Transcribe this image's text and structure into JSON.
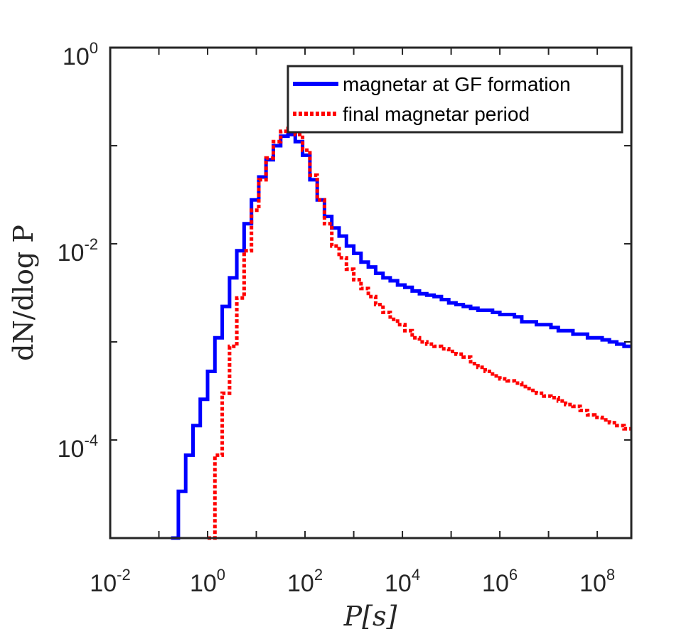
{
  "chart_data": {
    "type": "line",
    "title": "",
    "xlabel": "P[s]",
    "ylabel": "dN/dlog P",
    "xscale": "log",
    "yscale": "log",
    "xlim": [
      0.01,
      500000000
    ],
    "ylim": [
      1e-05,
      1
    ],
    "xticks": [
      {
        "base": "10",
        "exp": "-2",
        "value": 0.01
      },
      {
        "base": "10",
        "exp": "0",
        "value": 1
      },
      {
        "base": "10",
        "exp": "2",
        "value": 100
      },
      {
        "base": "10",
        "exp": "4",
        "value": 10000
      },
      {
        "base": "10",
        "exp": "6",
        "value": 1000000
      },
      {
        "base": "10",
        "exp": "8",
        "value": 100000000
      }
    ],
    "yticks": [
      {
        "base": "10",
        "exp": "-4",
        "value": 0.0001
      },
      {
        "base": "10",
        "exp": "-2",
        "value": 0.01
      },
      {
        "base": "10",
        "exp": "0",
        "value": 1
      }
    ],
    "legend_position": "top-right",
    "series": [
      {
        "name": "magnetar at GF formation",
        "color": "#0000ff",
        "style": "solid",
        "log10_x": [
          -0.75,
          -0.6,
          -0.45,
          -0.3,
          -0.15,
          0,
          0.15,
          0.3,
          0.45,
          0.6,
          0.75,
          0.9,
          1.05,
          1.2,
          1.35,
          1.5,
          1.65,
          1.8,
          1.95,
          2.1,
          2.25,
          2.4,
          2.55,
          2.7,
          2.85,
          3.0,
          3.15,
          3.3,
          3.45,
          3.6,
          3.75,
          3.9,
          4.05,
          4.2,
          4.35,
          4.5,
          4.65,
          4.8,
          4.95,
          5.1,
          5.25,
          5.4,
          5.55,
          5.7,
          5.85,
          6.0,
          6.15,
          6.3,
          6.45,
          6.6,
          6.75,
          6.9,
          7.05,
          7.2,
          7.35,
          7.5,
          7.65,
          7.8,
          7.95,
          8.1,
          8.25,
          8.4,
          8.55
        ],
        "values": [
          1e-05,
          3e-05,
          7e-05,
          0.00014,
          0.00026,
          0.0005,
          0.0011,
          0.0023,
          0.0045,
          0.0085,
          0.016,
          0.028,
          0.048,
          0.072,
          0.1,
          0.125,
          0.13,
          0.11,
          0.08,
          0.045,
          0.028,
          0.019,
          0.0145,
          0.012,
          0.0095,
          0.008,
          0.0065,
          0.0058,
          0.005,
          0.0045,
          0.0042,
          0.0038,
          0.0036,
          0.0033,
          0.0031,
          0.003,
          0.0029,
          0.0027,
          0.0025,
          0.0024,
          0.0023,
          0.0022,
          0.0021,
          0.0021,
          0.002,
          0.0019,
          0.0019,
          0.0018,
          0.0016,
          0.0016,
          0.0015,
          0.0015,
          0.0014,
          0.0013,
          0.0013,
          0.0012,
          0.0012,
          0.0011,
          0.0011,
          0.00105,
          0.001,
          0.00095,
          0.0009
        ]
      },
      {
        "name": "final magnetar period",
        "color": "#ff0000",
        "style": "dotted",
        "log10_x": [
          0,
          0.15,
          0.3,
          0.45,
          0.6,
          0.75,
          0.9,
          1.05,
          1.2,
          1.35,
          1.5,
          1.65,
          1.8,
          1.95,
          2.1,
          2.25,
          2.4,
          2.55,
          2.7,
          2.85,
          3.0,
          3.15,
          3.3,
          3.45,
          3.6,
          3.75,
          3.9,
          4.05,
          4.2,
          4.35,
          4.5,
          4.65,
          4.8,
          4.95,
          5.1,
          5.25,
          5.4,
          5.55,
          5.7,
          5.85,
          6.0,
          6.15,
          6.3,
          6.45,
          6.6,
          6.75,
          6.9,
          7.05,
          7.2,
          7.35,
          7.5,
          7.65,
          7.8,
          7.95,
          8.1,
          8.25,
          8.4,
          8.55
        ],
        "values": [
          1e-05,
          7e-05,
          0.0003,
          0.0009,
          0.0028,
          0.0085,
          0.022,
          0.045,
          0.075,
          0.11,
          0.14,
          0.15,
          0.13,
          0.09,
          0.05,
          0.028,
          0.016,
          0.0095,
          0.0072,
          0.0055,
          0.0043,
          0.0035,
          0.0029,
          0.0024,
          0.002,
          0.0017,
          0.0015,
          0.0013,
          0.0011,
          0.001,
          0.00095,
          0.0009,
          0.00085,
          0.0008,
          0.00075,
          0.0007,
          0.0006,
          0.00055,
          0.0005,
          0.00045,
          0.00042,
          0.0004,
          0.00038,
          0.00035,
          0.00032,
          0.0003,
          0.00028,
          0.00027,
          0.00025,
          0.00023,
          0.00022,
          0.0002,
          0.00018,
          0.00017,
          0.00016,
          0.00015,
          0.00014,
          0.00013
        ]
      }
    ]
  }
}
